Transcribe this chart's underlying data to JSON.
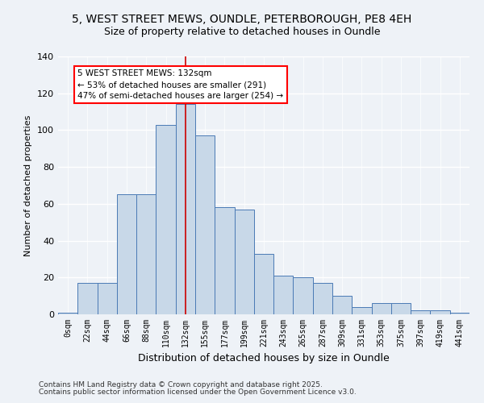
{
  "title": "5, WEST STREET MEWS, OUNDLE, PETERBOROUGH, PE8 4EH",
  "subtitle": "Size of property relative to detached houses in Oundle",
  "xlabel": "Distribution of detached houses by size in Oundle",
  "ylabel": "Number of detached properties",
  "bar_labels": [
    "0sqm",
    "22sqm",
    "44sqm",
    "66sqm",
    "88sqm",
    "110sqm",
    "132sqm",
    "155sqm",
    "177sqm",
    "199sqm",
    "221sqm",
    "243sqm",
    "265sqm",
    "287sqm",
    "309sqm",
    "331sqm",
    "353sqm",
    "375sqm",
    "397sqm",
    "419sqm",
    "441sqm"
  ],
  "bar_heights": [
    1,
    17,
    17,
    65,
    65,
    103,
    114,
    97,
    58,
    57,
    33,
    21,
    20,
    17,
    10,
    4,
    6,
    6,
    2,
    2,
    1
  ],
  "bar_color": "#c8d8e8",
  "bar_edge_color": "#4a7ab5",
  "vline_x": 6,
  "vline_label": "5 WEST STREET MEWS: 132sqm",
  "annotation_line1": "← 53% of detached houses are smaller (291)",
  "annotation_line2": "47% of semi-detached houses are larger (254) →",
  "annotation_box_color": "white",
  "annotation_box_edge": "red",
  "ylim": [
    0,
    140
  ],
  "yticks": [
    0,
    20,
    40,
    60,
    80,
    100,
    120,
    140
  ],
  "bg_color": "#eef2f7",
  "grid_color": "#ffffff",
  "footer_line1": "Contains HM Land Registry data © Crown copyright and database right 2025.",
  "footer_line2": "Contains public sector information licensed under the Open Government Licence v3.0.",
  "vline_color": "#cc0000",
  "title_fontsize": 10,
  "subtitle_fontsize": 9,
  "xlabel_fontsize": 9,
  "ylabel_fontsize": 8,
  "tick_fontsize": 7,
  "footer_fontsize": 6.5,
  "annot_fontsize": 7.5
}
